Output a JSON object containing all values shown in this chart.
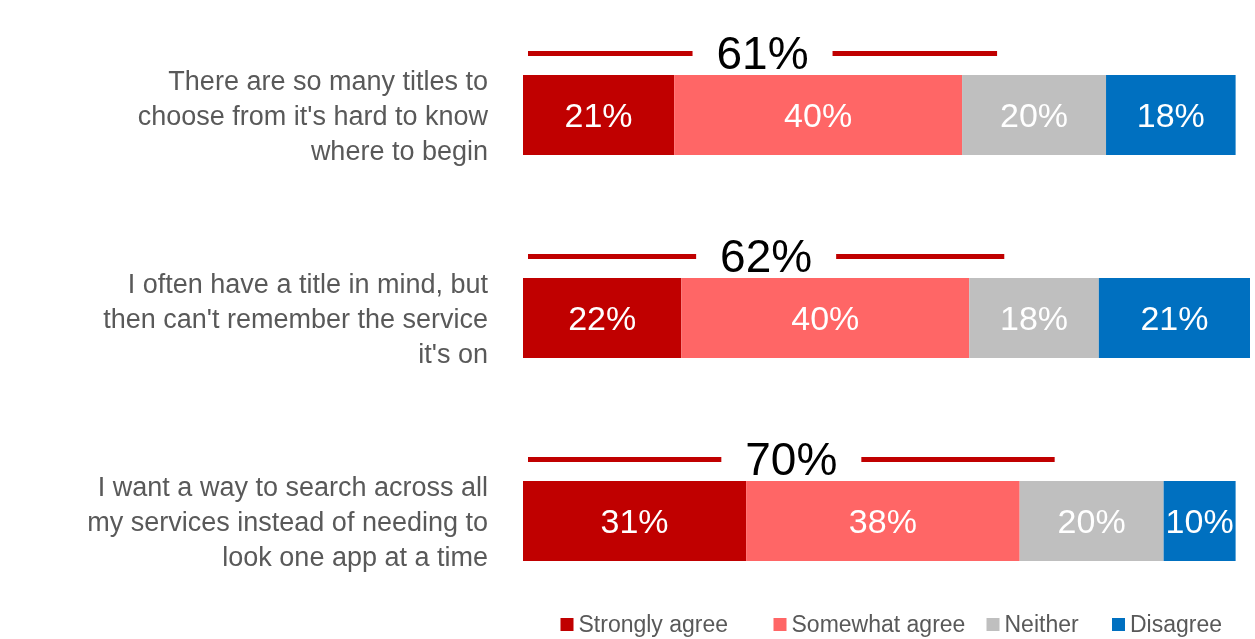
{
  "chart_data": {
    "type": "bar",
    "orientation": "horizontal",
    "stacked": true,
    "legend": "bottom right",
    "categories": [
      "There are so many titles to choose from it's hard to know where to begin",
      "I often have a title in mind, but then can't remember the service it's on",
      "I want a way to search across all my services instead of needing to look one app at a time"
    ],
    "series": [
      {
        "name": "Strongly agree",
        "color": "#c00000",
        "values": [
          21,
          22,
          31
        ],
        "value_labels": [
          "21%",
          "22%",
          "31%"
        ]
      },
      {
        "name": "Somewhat agree",
        "color": "#ff6666",
        "values": [
          40,
          40,
          38
        ],
        "value_labels": [
          "40%",
          "40%",
          "38%"
        ]
      },
      {
        "name": "Neither",
        "color": "#bfbfbf",
        "values": [
          20,
          18,
          20
        ],
        "value_labels": [
          "20%",
          "18%",
          "20%"
        ]
      },
      {
        "name": "Disagree",
        "color": "#0070c0",
        "values": [
          18,
          21,
          10
        ],
        "value_labels": [
          "18%",
          "21%",
          "10%"
        ]
      }
    ],
    "annotations": [
      "61%",
      "62%",
      "70%"
    ]
  }
}
